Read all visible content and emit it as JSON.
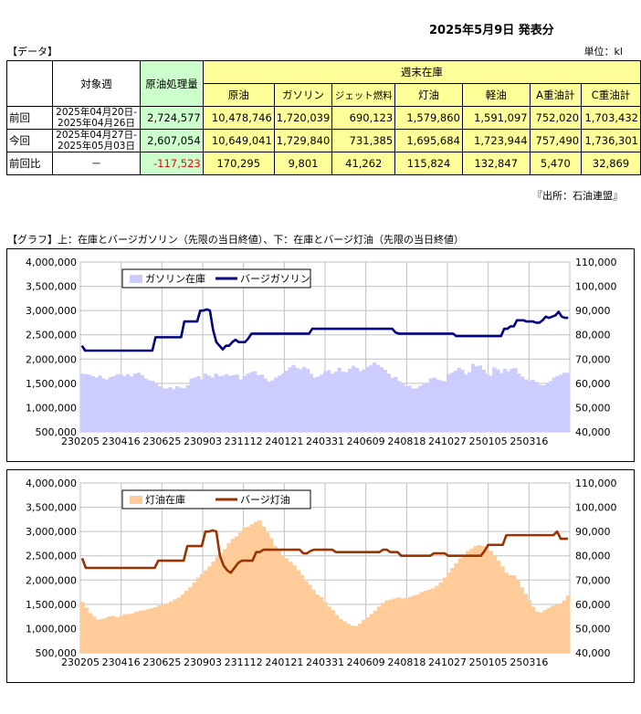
{
  "header": {
    "date_title": "2025年5月9日 発表分",
    "data_label": "【データ】",
    "unit": "単位：kl",
    "source": "『出所：石油連盟』",
    "graph_title": "【グラフ】上：在庫とバージガソリン（先限の当日終値）、下：在庫とバージ灯油（先限の当日終値）"
  },
  "table": {
    "h_week": "対象週",
    "h_crude": "原油処理量",
    "h_stock": "週末在庫",
    "cols": [
      "原油",
      "ガソリン",
      "ジェット燃料",
      "灯油",
      "軽油",
      "A重油計",
      "C重油計"
    ],
    "rows": [
      {
        "label": "前回",
        "week1": "2025年04月20日-",
        "week2": "2025年04月26日",
        "crude": "2,724,577",
        "vals": [
          "10,478,746",
          "1,720,039",
          "690,123",
          "1,579,860",
          "1,591,097",
          "752,020",
          "1,703,432"
        ]
      },
      {
        "label": "今回",
        "week1": "2025年04月27日-",
        "week2": "2025年05月03日",
        "crude": "2,607,054",
        "vals": [
          "10,649,041",
          "1,729,840",
          "731,385",
          "1,695,684",
          "1,723,944",
          "757,490",
          "1,736,301"
        ]
      },
      {
        "label": "前回比",
        "week1": "－",
        "week2": "",
        "crude": "-117,523",
        "vals": [
          "170,295",
          "9,801",
          "41,262",
          "115,824",
          "132,847",
          "5,470",
          "32,869"
        ]
      }
    ]
  },
  "chart_data": [
    {
      "type": "area",
      "x_ticks": [
        "230205",
        "230416",
        "230625",
        "230903",
        "231112",
        "240121",
        "240331",
        "240609",
        "240818",
        "241027",
        "250105",
        "250316"
      ],
      "y_left_ticks": [
        "4,000,000",
        "3,500,000",
        "3,000,000",
        "2,500,000",
        "2,000,000",
        "1,500,000",
        "1,000,000",
        "500,000"
      ],
      "y_right_ticks": [
        "110,000",
        "100,000",
        "90,000",
        "80,000",
        "70,000",
        "60,000",
        "50,000",
        "40,000"
      ],
      "ylim_left": [
        500000,
        4000000
      ],
      "ylim_right": [
        40000,
        110000
      ],
      "colors": {
        "area": "#ccccff",
        "line": "#000080"
      },
      "series": [
        {
          "name": "ガソリン在庫",
          "axis": "left",
          "values": [
            1700000,
            1690000,
            1680000,
            1650000,
            1620000,
            1660000,
            1600000,
            1580000,
            1630000,
            1650000,
            1690000,
            1680000,
            1650000,
            1690000,
            1640000,
            1700000,
            1720000,
            1670000,
            1600000,
            1560000,
            1550000,
            1500000,
            1440000,
            1400000,
            1390000,
            1420000,
            1380000,
            1440000,
            1410000,
            1400000,
            1460000,
            1600000,
            1620000,
            1650000,
            1580000,
            1700000,
            1660000,
            1620000,
            1700000,
            1650000,
            1660000,
            1690000,
            1650000,
            1670000,
            1680000,
            1580000,
            1650000,
            1700000,
            1730000,
            1750000,
            1670000,
            1680000,
            1600000,
            1530000,
            1560000,
            1620000,
            1660000,
            1700000,
            1760000,
            1830000,
            1880000,
            1820000,
            1790000,
            1840000,
            1800000,
            1700000,
            1620000,
            1640000,
            1680000,
            1740000,
            1770000,
            1700000,
            1740000,
            1820000,
            1740000,
            1730000,
            1800000,
            1860000,
            1820000,
            1750000,
            1790000,
            1840000,
            1880000,
            1930000,
            1880000,
            1830000,
            1780000,
            1700000,
            1610000,
            1630000,
            1550000,
            1500000,
            1440000,
            1450000,
            1390000,
            1400000,
            1450000,
            1480000,
            1510000,
            1600000,
            1620000,
            1580000,
            1560000,
            1540000,
            1690000,
            1720000,
            1760000,
            1820000,
            1780000,
            1680000,
            1730000,
            1900000,
            1850000,
            1870000,
            1780000,
            1700000,
            1660000,
            1830000,
            1790000,
            1710000,
            1800000,
            1750000,
            1800000,
            1820000,
            1700000,
            1640000,
            1580000,
            1550000,
            1570000,
            1530000,
            1470000,
            1460000,
            1500000,
            1550000,
            1620000,
            1650000,
            1680000,
            1720000,
            1720000
          ]
        },
        {
          "name": "バージガソリン",
          "axis": "right",
          "values": [
            75500,
            73500,
            73500,
            73500,
            73500,
            73500,
            73500,
            73500,
            73500,
            73500,
            73500,
            73500,
            73500,
            73500,
            73500,
            73500,
            73500,
            73500,
            73500,
            73500,
            73500,
            73500,
            73500,
            79000,
            79000,
            79000,
            79000,
            79000,
            79000,
            79000,
            79000,
            79000,
            85500,
            85500,
            85500,
            85500,
            85500,
            90000,
            90000,
            90500,
            90000,
            82000,
            77000,
            75500,
            74000,
            75500,
            75500,
            77000,
            78000,
            77000,
            77000,
            77000,
            78500,
            80500,
            80500,
            80500,
            80500,
            80500,
            80500,
            80500,
            80500,
            80500,
            80500,
            80500,
            80500,
            80500,
            80500,
            80500,
            80500,
            80500,
            80500,
            80500,
            82500,
            82500,
            82500,
            82500,
            82500,
            82500,
            82500,
            82500,
            82500,
            82500,
            82500,
            82500,
            82500,
            82500,
            82500,
            82500,
            82500,
            82500,
            82500,
            82500,
            82500,
            82500,
            82500,
            82500,
            82500,
            82500,
            81000,
            80500,
            80500,
            80500,
            80500,
            80500,
            80500,
            80500,
            80500,
            80500,
            80500,
            80500,
            80500,
            80500,
            80500,
            80500,
            80500,
            80500,
            80500,
            79500,
            79500,
            79500,
            79500,
            79500,
            79500,
            79500,
            79500,
            79500,
            79500,
            79500,
            79500,
            79500,
            79500,
            79500,
            82500,
            82500,
            83500,
            83500,
            86000,
            86000,
            86000,
            85500,
            85500,
            85500,
            85000,
            85000,
            86000,
            87500,
            87000,
            87500,
            88000,
            89500,
            87500,
            87000,
            87000
          ]
        }
      ]
    },
    {
      "type": "area",
      "x_ticks": [
        "230205",
        "230416",
        "230625",
        "230903",
        "231112",
        "240121",
        "240331",
        "240609",
        "240818",
        "241027",
        "250105",
        "250316"
      ],
      "y_left_ticks": [
        "4,000,000",
        "3,500,000",
        "3,000,000",
        "2,500,000",
        "2,000,000",
        "1,500,000",
        "1,000,000",
        "500,000"
      ],
      "y_right_ticks": [
        "110,000",
        "100,000",
        "90,000",
        "80,000",
        "70,000",
        "60,000",
        "50,000",
        "40,000"
      ],
      "ylim_left": [
        500000,
        4000000
      ],
      "ylim_right": [
        40000,
        110000
      ],
      "colors": {
        "area": "#ffcc99",
        "line": "#993300"
      },
      "series": [
        {
          "name": "灯油在庫",
          "axis": "left",
          "values": [
            1550000,
            1430000,
            1320000,
            1250000,
            1180000,
            1200000,
            1220000,
            1250000,
            1260000,
            1230000,
            1260000,
            1300000,
            1300000,
            1310000,
            1350000,
            1370000,
            1380000,
            1400000,
            1420000,
            1440000,
            1480000,
            1500000,
            1520000,
            1560000,
            1600000,
            1640000,
            1700000,
            1780000,
            1850000,
            1950000,
            2050000,
            2120000,
            2200000,
            2280000,
            2380000,
            2480000,
            2560000,
            2640000,
            2760000,
            2850000,
            2900000,
            2980000,
            3080000,
            3100000,
            3150000,
            3200000,
            3230000,
            3100000,
            2980000,
            2860000,
            2700000,
            2600000,
            2500000,
            2450000,
            2380000,
            2300000,
            2200000,
            2100000,
            1980000,
            1900000,
            1800000,
            1700000,
            1650000,
            1550000,
            1450000,
            1380000,
            1280000,
            1200000,
            1150000,
            1100000,
            1060000,
            1050000,
            1100000,
            1180000,
            1230000,
            1300000,
            1370000,
            1450000,
            1530000,
            1580000,
            1600000,
            1620000,
            1640000,
            1620000,
            1630000,
            1650000,
            1680000,
            1700000,
            1750000,
            1780000,
            1800000,
            1830000,
            1880000,
            1950000,
            2050000,
            2150000,
            2250000,
            2350000,
            2450000,
            2520000,
            2600000,
            2650000,
            2700000,
            2720000,
            2700000,
            2680000,
            2600000,
            2500000,
            2400000,
            2280000,
            2150000,
            2100000,
            2100000,
            2000000,
            1850000,
            1720000,
            1580000,
            1450000,
            1350000,
            1330000,
            1380000,
            1420000,
            1470000,
            1500000,
            1520000,
            1580000,
            1680000
          ]
        },
        {
          "name": "バージ灯油",
          "axis": "right",
          "values": [
            79000,
            75000,
            75000,
            75000,
            75000,
            75000,
            75000,
            75000,
            75000,
            75000,
            75000,
            75000,
            75000,
            75000,
            75000,
            75000,
            75000,
            75000,
            75000,
            75000,
            75000,
            78000,
            78000,
            78000,
            78000,
            78000,
            78000,
            78000,
            78000,
            84000,
            84000,
            84000,
            84000,
            84000,
            90000,
            90000,
            90500,
            90000,
            80000,
            76000,
            74000,
            73000,
            75000,
            77000,
            78000,
            78000,
            78000,
            78000,
            81500,
            81500,
            82500,
            82500,
            82500,
            82500,
            82500,
            82500,
            82500,
            82500,
            82500,
            82500,
            82500,
            81000,
            81000,
            82000,
            82500,
            82500,
            82500,
            82500,
            82500,
            82500,
            81500,
            81500,
            81500,
            81500,
            81500,
            81500,
            81500,
            81500,
            81500,
            81500,
            81500,
            81500,
            81500,
            82500,
            82500,
            81500,
            81500,
            81500,
            80000,
            80000,
            80000,
            80000,
            80000,
            80000,
            80000,
            80000,
            80000,
            81000,
            81000,
            81000,
            81000,
            80000,
            80000,
            80000,
            80000,
            80000,
            80000,
            80000,
            80000,
            80000,
            80000,
            82000,
            84500,
            84500,
            84500,
            84500,
            84500,
            88500,
            88500,
            88500,
            88500,
            88500,
            88500,
            88500,
            88500,
            88500,
            88500,
            88500,
            88500,
            88500,
            88500,
            90000,
            87000,
            87000,
            87000
          ]
        }
      ]
    }
  ]
}
